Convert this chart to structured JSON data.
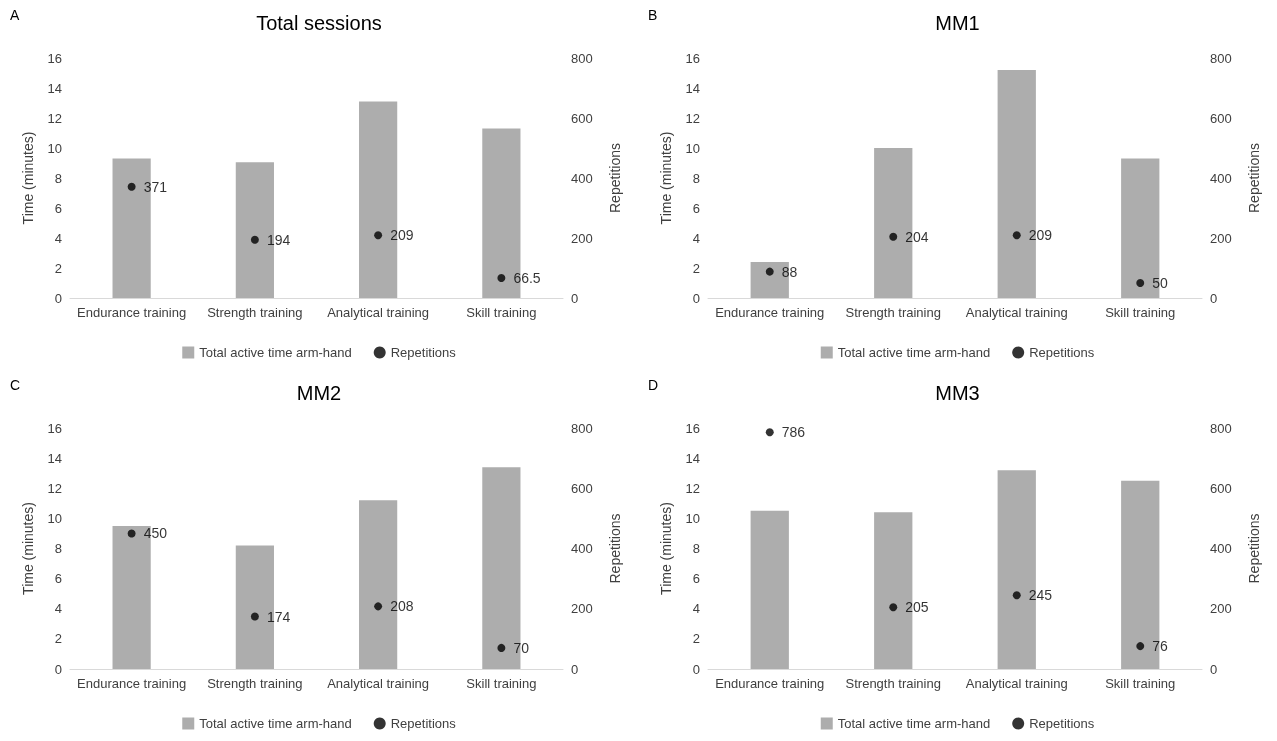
{
  "chart_data": [
    {
      "type": "bar",
      "title": "Total sessions",
      "annotations": [
        "A"
      ],
      "categories": [
        "Endurance training",
        "Strength training",
        "Analytical training",
        "Skill training"
      ],
      "ylabel": "Time (minutes)",
      "y2label": "Repetitions",
      "ylim": [
        0,
        16
      ],
      "yticks": [
        0,
        2,
        4,
        6,
        8,
        10,
        12,
        14,
        16
      ],
      "y2lim": [
        0,
        800
      ],
      "y2ticks": [
        0,
        200,
        400,
        600,
        800
      ],
      "grid": false,
      "legend": "bottom",
      "series": [
        {
          "name": "Total active time arm-hand",
          "type": "bar",
          "color": "#adadad",
          "values": [
            9.3,
            9.05,
            13.1,
            11.3
          ]
        },
        {
          "name": "Repetitions",
          "type": "scatter",
          "axis": "y2",
          "marker": "circle",
          "color": "#000000",
          "x": [
            "Endurance training",
            "Strength training",
            "Analytical training",
            "Skill training"
          ],
          "values": [
            371,
            194,
            209,
            66.5
          ],
          "value_labels": [
            "371",
            "194",
            "209",
            "66.5"
          ]
        }
      ]
    },
    {
      "type": "bar",
      "title": "MM1",
      "annotations": [
        "B"
      ],
      "categories": [
        "Endurance training",
        "Strength training",
        "Analytical training",
        "Skill training"
      ],
      "ylabel": "Time (minutes)",
      "y2label": "Repetitions",
      "ylim": [
        0,
        16
      ],
      "yticks": [
        0,
        2,
        4,
        6,
        8,
        10,
        12,
        14,
        16
      ],
      "y2lim": [
        0,
        800
      ],
      "y2ticks": [
        0,
        200,
        400,
        600,
        800
      ],
      "grid": false,
      "legend": "bottom",
      "series": [
        {
          "name": "Total active time arm-hand",
          "type": "bar",
          "color": "#adadad",
          "values": [
            2.4,
            10.0,
            15.2,
            9.3
          ]
        },
        {
          "name": "Repetitions",
          "type": "scatter",
          "axis": "y2",
          "marker": "circle",
          "color": "#000000",
          "x": [
            "Endurance training",
            "Strength training",
            "Analytical training",
            "Skill training"
          ],
          "values": [
            88,
            204,
            209,
            50
          ],
          "value_labels": [
            "88",
            "204",
            "209",
            "50"
          ]
        }
      ]
    },
    {
      "type": "bar",
      "title": "MM2",
      "annotations": [
        "C"
      ],
      "categories": [
        "Endurance training",
        "Strength training",
        "Analytical training",
        "Skill training"
      ],
      "ylabel": "Time (minutes)",
      "y2label": "Repetitions",
      "ylim": [
        0,
        16
      ],
      "yticks": [
        0,
        2,
        4,
        6,
        8,
        10,
        12,
        14,
        16
      ],
      "y2lim": [
        0,
        800
      ],
      "y2ticks": [
        0,
        200,
        400,
        600,
        800
      ],
      "grid": false,
      "legend": "bottom",
      "series": [
        {
          "name": "Total active time arm-hand",
          "type": "bar",
          "color": "#adadad",
          "values": [
            9.5,
            8.2,
            11.2,
            13.4
          ]
        },
        {
          "name": "Repetitions",
          "type": "scatter",
          "axis": "y2",
          "marker": "circle",
          "color": "#000000",
          "x": [
            "Endurance training",
            "Strength training",
            "Analytical training",
            "Skill training"
          ],
          "values": [
            450,
            174,
            208,
            70
          ],
          "value_labels": [
            "450",
            "174",
            "208",
            "70"
          ]
        }
      ]
    },
    {
      "type": "bar",
      "title": "MM3",
      "annotations": [
        "D"
      ],
      "categories": [
        "Endurance training",
        "Strength training",
        "Analytical training",
        "Skill training"
      ],
      "ylabel": "Time (minutes)",
      "y2label": "Repetitions",
      "ylim": [
        0,
        16
      ],
      "yticks": [
        0,
        2,
        4,
        6,
        8,
        10,
        12,
        14,
        16
      ],
      "y2lim": [
        0,
        800
      ],
      "y2ticks": [
        0,
        200,
        400,
        600,
        800
      ],
      "grid": false,
      "legend": "bottom",
      "series": [
        {
          "name": "Total active time arm-hand",
          "type": "bar",
          "color": "#adadad",
          "values": [
            10.5,
            10.4,
            13.2,
            12.5
          ]
        },
        {
          "name": "Repetitions",
          "type": "scatter",
          "axis": "y2",
          "marker": "circle",
          "color": "#000000",
          "x": [
            "Endurance training",
            "Strength training",
            "Analytical training",
            "Skill training"
          ],
          "values": [
            786,
            205,
            245,
            76
          ],
          "value_labels": [
            "786",
            "205",
            "245",
            "76"
          ]
        }
      ]
    }
  ]
}
